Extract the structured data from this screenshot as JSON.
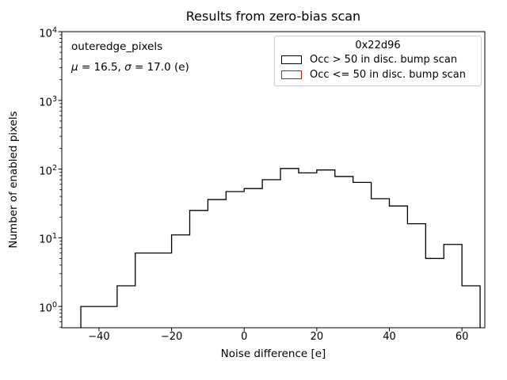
{
  "chart_data": {
    "type": "bar",
    "histtype": "step",
    "title": "Results from zero-bias scan",
    "xlabel": "Noise difference [e]",
    "ylabel": "Number of enabled pixels",
    "yscale": "log",
    "grid": false,
    "xlim": [
      -50.25,
      66.3
    ],
    "ylim": [
      0.49,
      10000
    ],
    "x_ticks": [
      -40,
      -20,
      0,
      20,
      40,
      60
    ],
    "y_tick_exponents": [
      0,
      1,
      2,
      3,
      4
    ],
    "bin_edges": [
      -45,
      -40,
      -35,
      -30,
      -25,
      -20,
      -15,
      -10,
      -5,
      0,
      5,
      10,
      15,
      20,
      25,
      30,
      35,
      40,
      45,
      50,
      55,
      60,
      65
    ],
    "series": [
      {
        "name": "Occ > 50 in disc. bump scan",
        "color": "#000000",
        "counts": [
          1,
          1,
          2,
          6,
          6,
          11,
          25,
          36,
          47,
          52,
          70,
          102,
          88,
          97,
          78,
          64,
          37,
          29,
          16,
          5,
          8,
          2
        ]
      },
      {
        "name": "Occ <= 50 in disc. bump scan",
        "color": "#ff0000",
        "counts": []
      }
    ],
    "legend": {
      "title": "0x22d96",
      "position": "upper right"
    }
  },
  "annotation": {
    "line1": "outeredge_pixels",
    "stats_parts": [
      {
        "text": "μ",
        "italic": true
      },
      {
        "text": " = 16.5, ",
        "italic": false
      },
      {
        "text": "σ",
        "italic": true
      },
      {
        "text": " = 17.0 (e)",
        "italic": false
      }
    ]
  }
}
